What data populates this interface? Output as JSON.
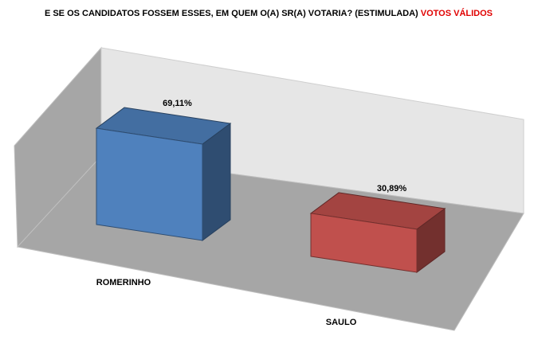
{
  "chart_data": {
    "type": "bar3d",
    "title": "E SE OS CANDIDATOS FOSSEM ESSES, EM QUEM O(A) SR(A) VOTARIA? (ESTIMULADA)",
    "title_emphasis": "VOTOS VÁLIDOS",
    "categories": [
      "ROMERINHO",
      "SAULO"
    ],
    "values": [
      69.11,
      30.89
    ],
    "value_labels": [
      "69,11%",
      "30,89%"
    ],
    "colors": [
      "#4f81bd",
      "#c0504d"
    ]
  }
}
